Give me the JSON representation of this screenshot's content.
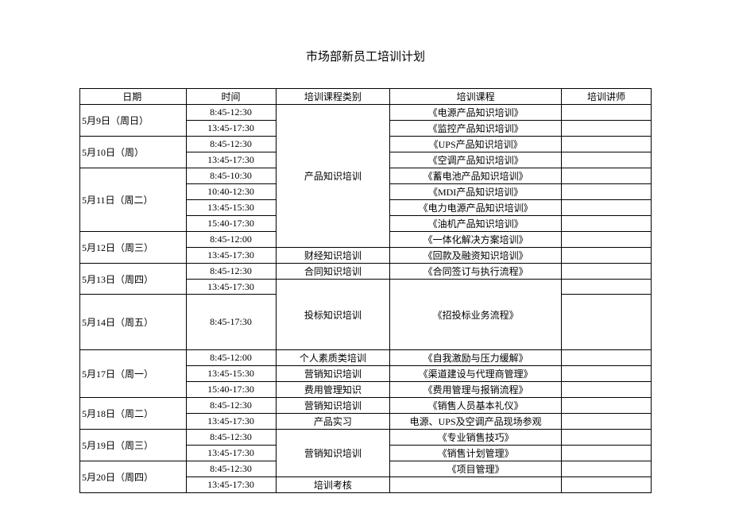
{
  "title": "市场部新员工培训计划",
  "headers": {
    "date": "日期",
    "time": "时间",
    "category": "培训课程类别",
    "course": "培训课程",
    "teacher": "培训讲师"
  },
  "rows": [
    {
      "date": "5月9日（周日）",
      "date_span": 2,
      "time": "8:45-12:30",
      "cat": "产品知识培训",
      "cat_span": 9,
      "course": "《电源产品知识培训》",
      "teacher": ""
    },
    {
      "time": "13:45-17:30",
      "course": "《监控产品知识培训》",
      "teacher": ""
    },
    {
      "date": "5月10日（周）",
      "date_span": 2,
      "time": "8:45-12:30",
      "course": "《UPS产品知识培训》",
      "teacher": ""
    },
    {
      "time": "13:45-17:30",
      "course": "《空调产品知识培训》",
      "teacher": ""
    },
    {
      "date": "5月11日（周二）",
      "date_span": 4,
      "time": "8:45-10:30",
      "course": "《蓄电池产品知识培训》",
      "teacher": ""
    },
    {
      "time": "10:40-12:30",
      "course": "《MDI产品知识培训》",
      "teacher": ""
    },
    {
      "time": "13:45-15:30",
      "course": "《电力电源产品知识培训》",
      "teacher": ""
    },
    {
      "time": "15:40-17:30",
      "course": "《油机产品知识培训》",
      "teacher": ""
    },
    {
      "date": "5月12日（周三）",
      "date_span": 2,
      "time": "8:45-12:00",
      "course": "《一体化解决方案培训》",
      "teacher": ""
    },
    {
      "time": "13:45-17:30",
      "cat": "财经知识培训",
      "cat_span": 1,
      "course": "《回款及融资知识培训》",
      "teacher": ""
    },
    {
      "date": "5月13日（周四）",
      "date_span": 2,
      "time": "8:45-12:30",
      "cat": "合同知识培训",
      "cat_span": 1,
      "course": "《合同签订与执行流程》",
      "teacher": ""
    },
    {
      "time": "13:45-17:30",
      "cat": "投标知识培训",
      "cat_span": 2,
      "course": "《招投标业务流程》",
      "course_span": 2,
      "teacher": "",
      "teacher_span": 1
    },
    {
      "date": "5月14日（周五）",
      "date_span": 1,
      "time": "8:45-17:30",
      "teacher": "",
      "tall": true
    },
    {
      "date": "5月17日（周一）",
      "date_span": 3,
      "time": "8:45-12:00",
      "cat": "个人素质类培训",
      "cat_span": 1,
      "course": "《自我激励与压力缓解》",
      "teacher": ""
    },
    {
      "time": "13:45-15:30",
      "cat": "营销知识培训",
      "cat_span": 1,
      "course": "《渠道建设与代理商管理》",
      "teacher": ""
    },
    {
      "time": "15:40-17:30",
      "cat": "费用管理知识",
      "cat_span": 1,
      "course": "《费用管理与报销流程》",
      "teacher": ""
    },
    {
      "date": "5月18日（周二）",
      "date_span": 2,
      "time": "8:45-12:30",
      "cat": "营销知识培训",
      "cat_span": 1,
      "course": "《销售人员基本礼仪》",
      "teacher": ""
    },
    {
      "time": "13:45-17:30",
      "cat": "产品实习",
      "cat_span": 1,
      "course": "电源、UPS及空调产品现场参观",
      "teacher": ""
    },
    {
      "date": "5月19日（周三）",
      "date_span": 2,
      "time": "8:45-12:30",
      "cat": "营销知识培训",
      "cat_span": 3,
      "course": "《专业销售技巧》",
      "teacher": ""
    },
    {
      "time": "13:45-17:30",
      "course": "《销售计划管理》",
      "teacher": ""
    },
    {
      "date": "5月20日（周四）",
      "date_span": 2,
      "time": "8:45-12:30",
      "course": "《项目管理》",
      "teacher": ""
    },
    {
      "time": "13:45-17:30",
      "cat": "培训考核",
      "cat_span": 1,
      "course": "",
      "teacher": ""
    }
  ]
}
